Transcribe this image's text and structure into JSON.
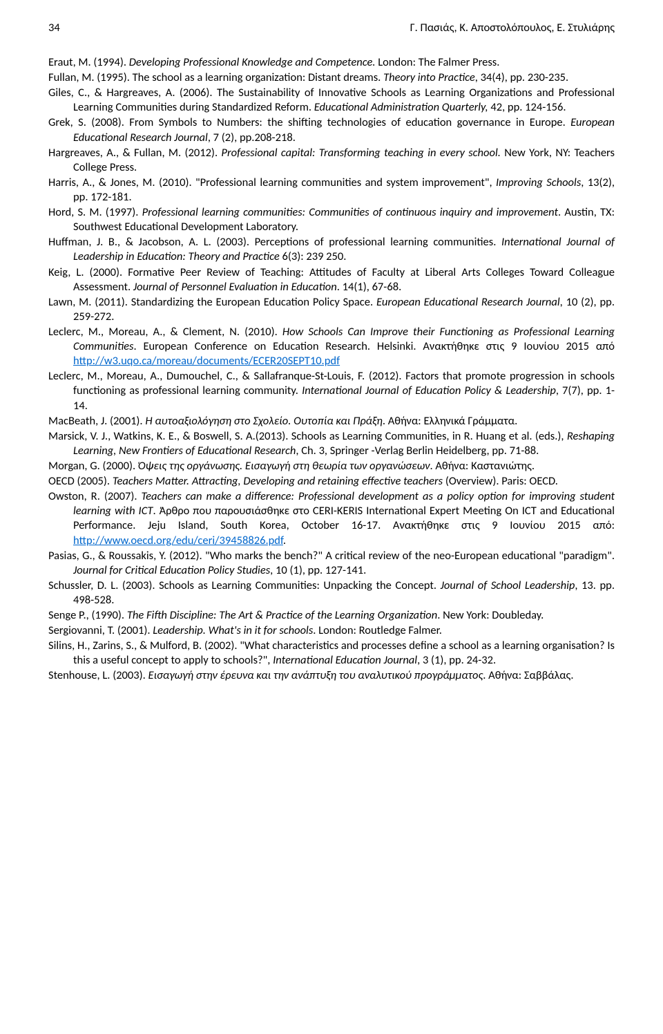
{
  "header": {
    "page_number": "34",
    "authors": "Γ. Πασιάς, Κ. Αποστολόπουλος, Ε. Στυλιάρης"
  },
  "references": [
    {
      "pre": "Eraut, M. (1994). ",
      "italic1": "Developing Professional Knowledge and Competence.",
      "post1": " London: The Falmer Press."
    },
    {
      "pre": "Fullan, M. (1995). The school as a learning organization: Distant dreams. ",
      "italic1": "Theory into Practice",
      "post1": ", 34(4), pp. 230-235."
    },
    {
      "pre": "Giles, C., & Hargreaves, A. (2006). The Sustainability of Innovative Schools as Learning Organizations and Professional Learning Communities during Standardized Reform. ",
      "italic1": "Educational Administration Quarterly,",
      "post1": " 42, pp. 124-156."
    },
    {
      "pre": "Grek, S. (2008). From Symbols to Numbers: the shifting technologies of education governance in Europe. ",
      "italic1": "European Educational Research Journal",
      "post1": ", 7 (2), pp.208-218."
    },
    {
      "pre": "Hargreaves, A., & Fullan, M. (2012). ",
      "italic1": "Professional capital: Transforming teaching in every school.",
      "post1": " New York, NY: Teachers College Press."
    },
    {
      "pre": "Harris, A., & Jones, M. (2010). \"Professional learning communities and system improvement\", ",
      "italic1": "Improving Schools",
      "post1": ", 13(2), pp. 172-181."
    },
    {
      "pre": "Hord, S. M. (1997). ",
      "italic1": "Professional learning communities: Communities of continuous inquiry and improvement",
      "post1": ". Austin, TX: Southwest Educational Development Laboratory."
    },
    {
      "pre": "Huffman, J. B., & Jacobson, A. L. (2003). Perceptions of professional learning communities. ",
      "italic1": "International Journal of Leadership in Education: Theory and Practice",
      "post1": " 6(3): 239 250."
    },
    {
      "pre": "Keig, L. (2000). Formative Peer Review of Teaching: Attitudes of Faculty at Liberal Arts Colleges Toward Colleague Assessment. ",
      "italic1": "Journal of Personnel Evaluation in Education",
      "post1": ". 14(1), 67-68."
    },
    {
      "pre": "Lawn, M. (2011). Standardizing the European Education Policy Space. ",
      "italic1": "European Educational Research Journal",
      "post1": ", 10 (2), pp. 259-272."
    },
    {
      "pre": "Leclerc, M., Moreau, A., & Clement, N. (2010). ",
      "italic1": "How Schools Can Improve their Functioning as Professional Learning Communities",
      "post1": ". European Conference on Education Research. Helsinki. Ανακτήθηκε στις 9 Ιουνίου 2015 από ",
      "link1": "http://w3.uqo.ca/moreau/documents/ECER20SEPT10.pdf"
    },
    {
      "pre": "Leclerc, M., Moreau, A., Dumouchel, C., & Sallafranque-St-Louis, F. (2012). Factors that promote progression in schools functioning as professional learning community. ",
      "italic1": "International Journal of Education Policy & Leadership",
      "post1": ", 7(7), pp. 1-14."
    },
    {
      "pre": "MacBeath, J. (2001). ",
      "italic1": "Η αυτοαξιολόγηση στο Σχολείο. Ουτοπία και Πράξη",
      "post1": ". Αθήνα: Ελληνικά Γράμματα."
    },
    {
      "pre": "Marsick, V. J., Watkins, K. E., & Boswell, S. A.(2013). Schools as Learning Communities, in R. Huang et al. (eds.), ",
      "italic1": "Reshaping Learning, New Frontiers of Educational Research",
      "post1": ", Ch. 3, Springer -Verlag Berlin Heidelberg, pp. 71-88."
    },
    {
      "pre": "Morgan, G. (2000). ",
      "italic1": "Όψεις της οργάνωσης. Εισαγωγή στη θεωρία των οργανώσεων",
      "post1": ". Αθήνα: Καστανιώτης."
    },
    {
      "pre": "OECD (2005). ",
      "italic1": "Teachers Matter. Attracting, Developing and retaining effective teachers ",
      "post1": "(Overview). Paris: OECD."
    },
    {
      "pre": "Owston, R. (2007). ",
      "italic1": "Teachers can make a difference: Professional development as a policy option for improving student learning with ICT",
      "post1": ". Άρθρο που παρουσιάσθηκε στο CERI-KERIS International Expert Meeting On ICT and Educational Performance. Jeju Island, South Korea, October 16-17. Ανακτήθηκε στις 9 Ιουνίου 2015 από: ",
      "link1": "http://www.oecd.org/edu/ceri/39458826.pdf",
      "post2": "."
    },
    {
      "pre": "Pasias, G., & Roussakis, Y. (2012). \"Who marks the bench?\" A critical review of the neo-European educational \"paradigm\". ",
      "italic1": "Journal for Critical Education Policy Studies",
      "post1": ", 10 (1), pp. 127-141."
    },
    {
      "pre": "Schussler, D. L. (2003). Schools as Learning Communities: Unpacking the Concept. ",
      "italic1": "Journal of School Leadership",
      "post1": ", 13. pp. 498-528."
    },
    {
      "pre": "Senge P., (1990). ",
      "italic1": "The Fifth Discipline: The Art & Practice of the Learning Organization",
      "post1": ". New York: Doubleday."
    },
    {
      "pre": "Sergiovanni, T. (2001). ",
      "italic1": "Leadership. What's in it for schools",
      "post1": ". London: Routledge Falmer."
    },
    {
      "pre": "Silins, H., Zarins, S., & Mulford, B. (2002). \"What characteristics and processes define a school as a learning organisation? Is this a useful concept to apply to schools?\", ",
      "italic1": "International Education Journal",
      "post1": ",  3 (1),  pp. 24-32."
    },
    {
      "pre": "Stenhouse, L. (2003). ",
      "italic1": "Εισαγωγή στην έρευνα και την ανάπτυξη του αναλυτικού προγράμματος",
      "post1": ". Αθήνα: Σαββάλας."
    }
  ]
}
